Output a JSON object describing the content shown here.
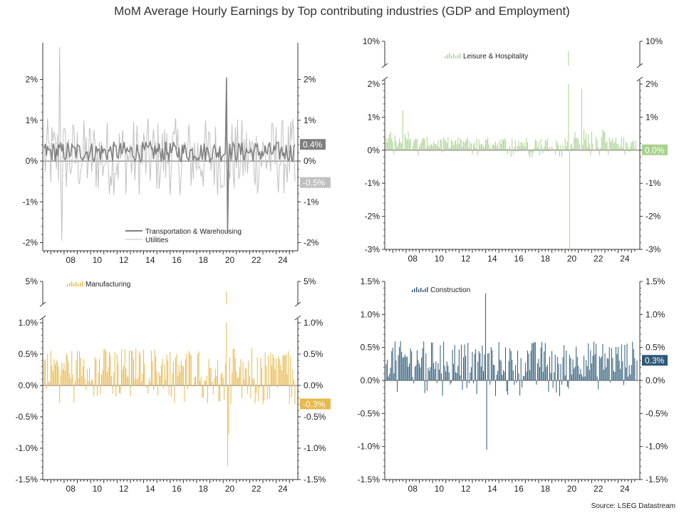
{
  "title": "MoM Average Hourly Earnings by Top contributing industries (GDP and Employment)",
  "source": "Source: LSEG Datastream",
  "chart_data": [
    {
      "type": "line",
      "panel": "top-left",
      "x_ticks": [
        "08",
        "10",
        "12",
        "14",
        "16",
        "18",
        "20",
        "22",
        "24"
      ],
      "ylim": [
        -2.2,
        2.9
      ],
      "y_ticks": [
        "-2%",
        "-1%",
        "0%",
        "1%",
        "2%"
      ],
      "y_tick_values": [
        -2,
        -1,
        0,
        1,
        2
      ],
      "series": [
        {
          "name": "Transportation & Warehousing",
          "color": "#7f7f7f",
          "last_label": "0.4%",
          "last_value": 0.4
        },
        {
          "name": "Utilities",
          "color": "#c0c0c0",
          "last_label": "-0.5%",
          "last_value": -0.5
        }
      ],
      "notable_points": [
        {
          "x": "2020-04",
          "series": "Transportation & Warehousing",
          "value": 2.05
        },
        {
          "x": "2020-05",
          "series": "Transportation & Warehousing",
          "value": -1.75
        },
        {
          "x": "2007-09",
          "series": "Utilities",
          "value": 2.8
        },
        {
          "x": "2007-11",
          "series": "Utilities",
          "value": -1.95
        }
      ]
    },
    {
      "type": "bar",
      "panel": "top-right",
      "x_ticks": [
        "08",
        "10",
        "12",
        "14",
        "16",
        "18",
        "20",
        "22",
        "24"
      ],
      "ylim": [
        -3,
        2
      ],
      "y_ticks": [
        "-3%",
        "-2%",
        "-1%",
        "0%",
        "1%",
        "2%"
      ],
      "y_tick_values": [
        -3,
        -2,
        -1,
        0,
        1,
        2
      ],
      "broken_axis_top_tick": "10%",
      "series": [
        {
          "name": "Leisure & Hospitality",
          "color": "#a9d18e",
          "last_label": "0.0%",
          "last_value": 0.0
        }
      ],
      "notable_points": [
        {
          "x": "2020-04",
          "value": 8.0
        },
        {
          "x": "2020-05",
          "value": -3.0
        },
        {
          "x": "2007-10",
          "value": 1.2
        },
        {
          "x": "2021-04",
          "value": 1.85
        }
      ]
    },
    {
      "type": "bar",
      "panel": "bottom-left",
      "x_ticks": [
        "08",
        "10",
        "12",
        "14",
        "16",
        "18",
        "20",
        "22",
        "24"
      ],
      "ylim": [
        -1.5,
        1.0
      ],
      "y_ticks": [
        "-1.5%",
        "-1.0%",
        "-0.5%",
        "0.0%",
        "0.5%",
        "1.0%"
      ],
      "y_tick_values": [
        -1.5,
        -1.0,
        -0.5,
        0.0,
        0.5,
        1.0
      ],
      "broken_axis_top_tick": "5%",
      "series": [
        {
          "name": "Manufacturing",
          "color": "#e8b84a",
          "last_label": "-0.3%",
          "last_value": -0.3
        }
      ],
      "notable_points": [
        {
          "x": "2020-04",
          "value": 4.0
        },
        {
          "x": "2020-05",
          "value": -1.28
        },
        {
          "x": "2020-06",
          "value": -0.78
        }
      ]
    },
    {
      "type": "bar",
      "panel": "bottom-right",
      "x_ticks": [
        "08",
        "10",
        "12",
        "14",
        "16",
        "18",
        "20",
        "22",
        "24"
      ],
      "ylim": [
        -1.5,
        1.5
      ],
      "y_ticks": [
        "-1.5%",
        "-1.0%",
        "-0.5%",
        "0.0%",
        "0.5%",
        "1.0%",
        "1.5%"
      ],
      "y_tick_values": [
        -1.5,
        -1.0,
        -0.5,
        0.0,
        0.5,
        1.0,
        1.5
      ],
      "series": [
        {
          "name": "Construction",
          "color": "#2e5a78",
          "last_label": "0.3%",
          "last_value": 0.3
        }
      ],
      "notable_points": [
        {
          "x": "2014-01",
          "value": 1.32
        },
        {
          "x": "2014-02",
          "value": -1.05
        }
      ]
    }
  ]
}
